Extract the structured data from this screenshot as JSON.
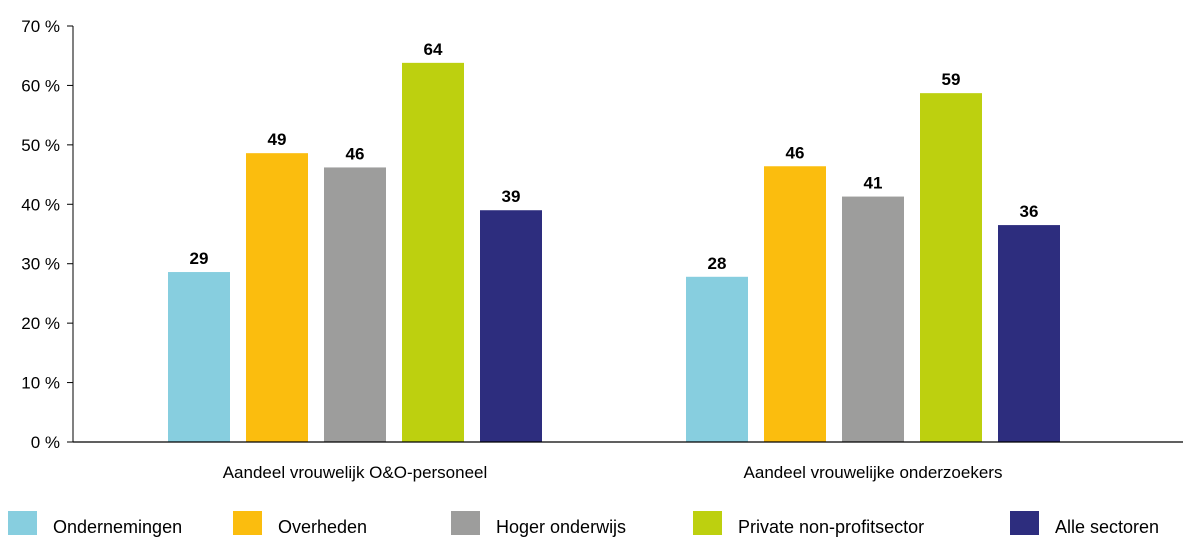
{
  "chart_data": {
    "type": "bar",
    "categories": [
      "Aandeel vrouwelijk O&O-personeel",
      "Aandeel vrouwelijke onderzoekers"
    ],
    "series": [
      {
        "name": "Ondernemingen",
        "values": [
          28.6,
          27.8
        ],
        "labels": [
          "29",
          "28"
        ],
        "color": "#87CEDF"
      },
      {
        "name": "Overheden",
        "values": [
          48.6,
          46.4
        ],
        "labels": [
          "49",
          "46"
        ],
        "color": "#FBBD0E"
      },
      {
        "name": "Hoger onderwijs",
        "values": [
          46.2,
          41.3
        ],
        "labels": [
          "46",
          "41"
        ],
        "color": "#9D9D9C"
      },
      {
        "name": "Private non-profitsector",
        "values": [
          63.8,
          58.7
        ],
        "labels": [
          "64",
          "59"
        ],
        "color": "#BDD00F"
      },
      {
        "name": "Alle sectoren",
        "values": [
          39.0,
          36.5
        ],
        "labels": [
          "39",
          "36"
        ],
        "color": "#2D2D7E"
      }
    ],
    "yticks": [
      "0 %",
      "10 %",
      "20 %",
      "30 %",
      "40 %",
      "50 %",
      "60 %",
      "70 %"
    ],
    "ylim": [
      0,
      70
    ],
    "grid": false,
    "legend_position": "bottom"
  }
}
